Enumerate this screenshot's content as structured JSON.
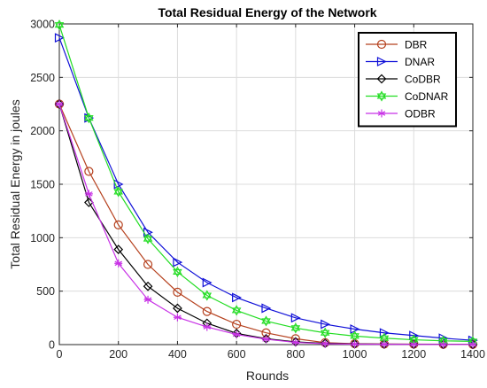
{
  "chart_data": {
    "type": "line",
    "title": "Total Residual Energy of the Network",
    "xlabel": "Rounds",
    "ylabel": "Total Residual Energy in joules",
    "xlim": [
      0,
      1400
    ],
    "ylim": [
      0,
      3000
    ],
    "xticks": [
      0,
      200,
      400,
      600,
      800,
      1000,
      1200,
      1400
    ],
    "yticks": [
      0,
      500,
      1000,
      1500,
      2000,
      2500,
      3000
    ],
    "grid": true,
    "legend_position": "top-right",
    "x": [
      0,
      100,
      200,
      300,
      400,
      500,
      600,
      700,
      800,
      900,
      1000,
      1100,
      1200,
      1300,
      1400
    ],
    "series": [
      {
        "name": "DBR",
        "color": "#b5401d",
        "marker": "circle",
        "values": [
          2250,
          1620,
          1120,
          750,
          490,
          310,
          190,
          110,
          55,
          18,
          8,
          5,
          4,
          3,
          2
        ]
      },
      {
        "name": "DNAR",
        "color": "#1010d8",
        "marker": "triangle-right",
        "values": [
          2870,
          2120,
          1500,
          1050,
          770,
          580,
          440,
          340,
          250,
          190,
          145,
          110,
          85,
          60,
          40
        ]
      },
      {
        "name": "CoDBR",
        "color": "#000000",
        "marker": "diamond",
        "values": [
          2250,
          1330,
          890,
          545,
          340,
          200,
          105,
          55,
          25,
          12,
          6,
          4,
          3,
          2,
          1
        ]
      },
      {
        "name": "CoDNAR",
        "color": "#22dd22",
        "marker": "hexagram",
        "values": [
          2990,
          2120,
          1430,
          990,
          680,
          460,
          320,
          220,
          155,
          110,
          80,
          60,
          45,
          35,
          30
        ]
      },
      {
        "name": "ODBR",
        "color": "#c832e6",
        "marker": "asterisk",
        "values": [
          2250,
          1410,
          760,
          420,
          255,
          165,
          95,
          50,
          20,
          8,
          4,
          3,
          2,
          1,
          1
        ]
      }
    ]
  }
}
